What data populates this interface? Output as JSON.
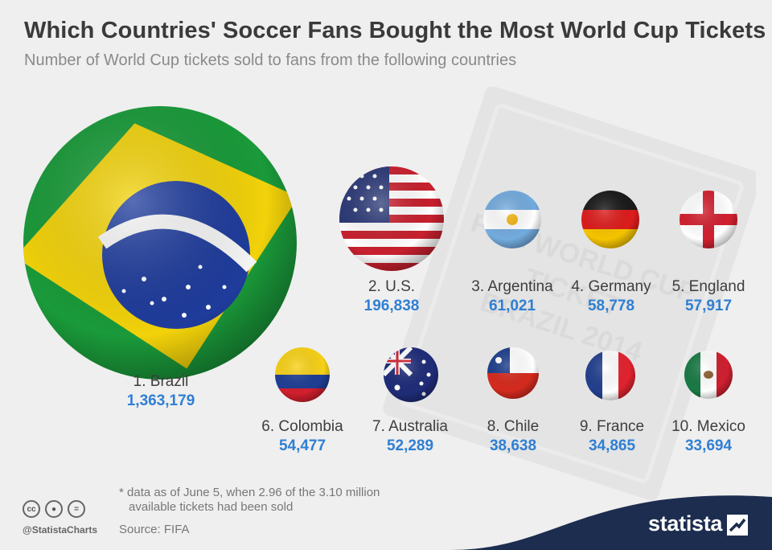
{
  "title": "Which Countries' Soccer Fans Bought the Most World Cup Tickets",
  "subtitle": "Number of World Cup tickets sold to fans from the following countries",
  "background_ticket_text": [
    "FIFA WORLD CUP",
    "TICKET",
    "BRAZIL 2014"
  ],
  "chart_data": {
    "type": "bubble",
    "title": "Which Countries' Soccer Fans Bought the Most World Cup Tickets",
    "subtitle": "Number of World Cup tickets sold to fans from the following countries",
    "categories": [
      "Brazil",
      "U.S.",
      "Argentina",
      "Germany",
      "England",
      "Colombia",
      "Australia",
      "Chile",
      "France",
      "Mexico"
    ],
    "values": [
      1363179,
      196838,
      61021,
      58778,
      57917,
      54477,
      52289,
      38638,
      34865,
      33694
    ],
    "entries": [
      {
        "rank": "1. Brazil",
        "value": "1,363,179",
        "flag": "brazil-flag"
      },
      {
        "rank": "2. U.S.",
        "value": "196,838",
        "flag": "us-flag"
      },
      {
        "rank": "3. Argentina",
        "value": "61,021",
        "flag": "argentina-flag"
      },
      {
        "rank": "4. Germany",
        "value": "58,778",
        "flag": "germany-flag"
      },
      {
        "rank": "5. England",
        "value": "57,917",
        "flag": "england-flag"
      },
      {
        "rank": "6. Colombia",
        "value": "54,477",
        "flag": "colombia-flag"
      },
      {
        "rank": "7. Australia",
        "value": "52,289",
        "flag": "australia-flag"
      },
      {
        "rank": "8. Chile",
        "value": "38,638",
        "flag": "chile-flag"
      },
      {
        "rank": "9. France",
        "value": "34,865",
        "flag": "france-flag"
      },
      {
        "rank": "10. Mexico",
        "value": "33,694",
        "flag": "mexico-flag"
      }
    ]
  },
  "footnote": {
    "line1": "* data as of June 5, when 2.96 of the 3.10 million",
    "line2": "available tickets had been sold"
  },
  "source": "Source: FIFA",
  "handle": "@StatistaCharts",
  "brand": "statista",
  "brand_mark_icon": "statista-logo-icon",
  "license_icons": [
    "cc-icon",
    "attribution-icon",
    "no-derivatives-icon"
  ],
  "colors": {
    "background": "#efefef",
    "value_blue": "#2f7fd3",
    "brand_navy": "#1d2d4f"
  }
}
